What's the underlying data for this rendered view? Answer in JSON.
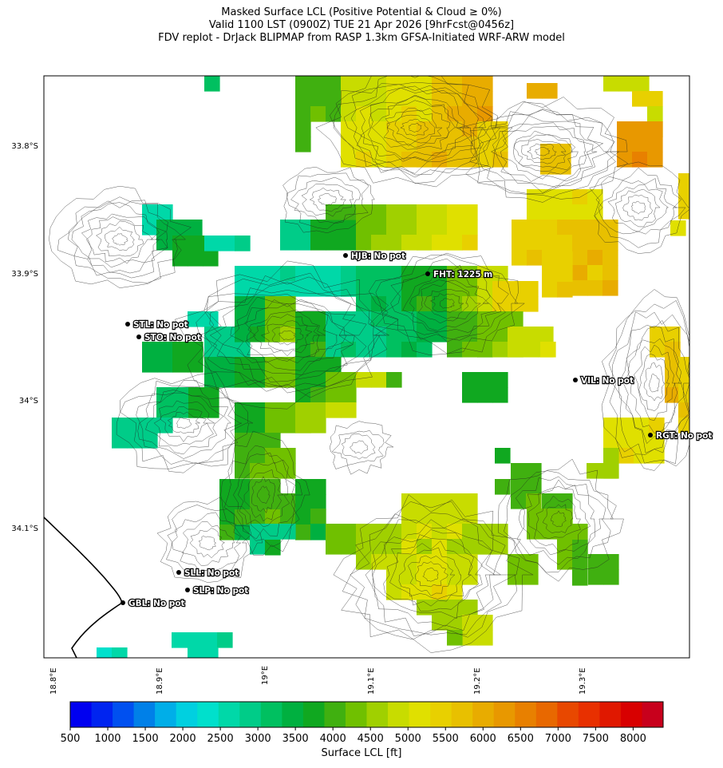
{
  "title": {
    "line1": "Masked Surface LCL (Positive Potential & Cloud ≥ 0%)",
    "line2": "Valid 1100 LST (0900Z) TUE 21 Apr 2026 [9hrFcst@0456z]",
    "line3": "FDV replot - DrJack BLIPMAP from RASP 1.3km GFSA-Initiated WRF-ARW model"
  },
  "lat_labels": [
    "33.8°S",
    "33.9°S",
    "34°S",
    "34.1°S"
  ],
  "lon_labels": [
    "18.8°E",
    "18.9°E",
    "19°E",
    "19.1°E",
    "19.2°E",
    "19.3°E"
  ],
  "stations": [
    {
      "code": "HJB",
      "label": "HJB: No pot"
    },
    {
      "code": "FHT",
      "label": "FHT: 1225 m"
    },
    {
      "code": "STL",
      "label": "STL: No pot"
    },
    {
      "code": "STO",
      "label": "STO: No pot"
    },
    {
      "code": "VIL",
      "label": "VIL: No pot"
    },
    {
      "code": "RGT",
      "label": "RGT: No pot"
    },
    {
      "code": "SLL",
      "label": "SLL: No pot"
    },
    {
      "code": "SLP",
      "label": "SLP: No pot"
    },
    {
      "code": "GBL",
      "label": "GBL: No pot"
    }
  ],
  "colorbar": {
    "label": "Surface LCL [ft]",
    "ticks": [
      "500",
      "1000",
      "1500",
      "2000",
      "2500",
      "3000",
      "3500",
      "4000",
      "4500",
      "5000",
      "5500",
      "6000",
      "6500",
      "7000",
      "7500",
      "8000"
    ],
    "colors": [
      "#0000f0",
      "#0024f0",
      "#0050f0",
      "#0080e8",
      "#00aee8",
      "#00d0e0",
      "#00e0cc",
      "#00d8a8",
      "#00cc88",
      "#00c060",
      "#00b040",
      "#10a820",
      "#40b010",
      "#70c000",
      "#a0d000",
      "#c8dc00",
      "#e0e000",
      "#e8d000",
      "#e8c000",
      "#e8ac00",
      "#e89800",
      "#e88000",
      "#e86800",
      "#e84800",
      "#e83000",
      "#e01800",
      "#d80000",
      "#c8001c"
    ]
  }
}
